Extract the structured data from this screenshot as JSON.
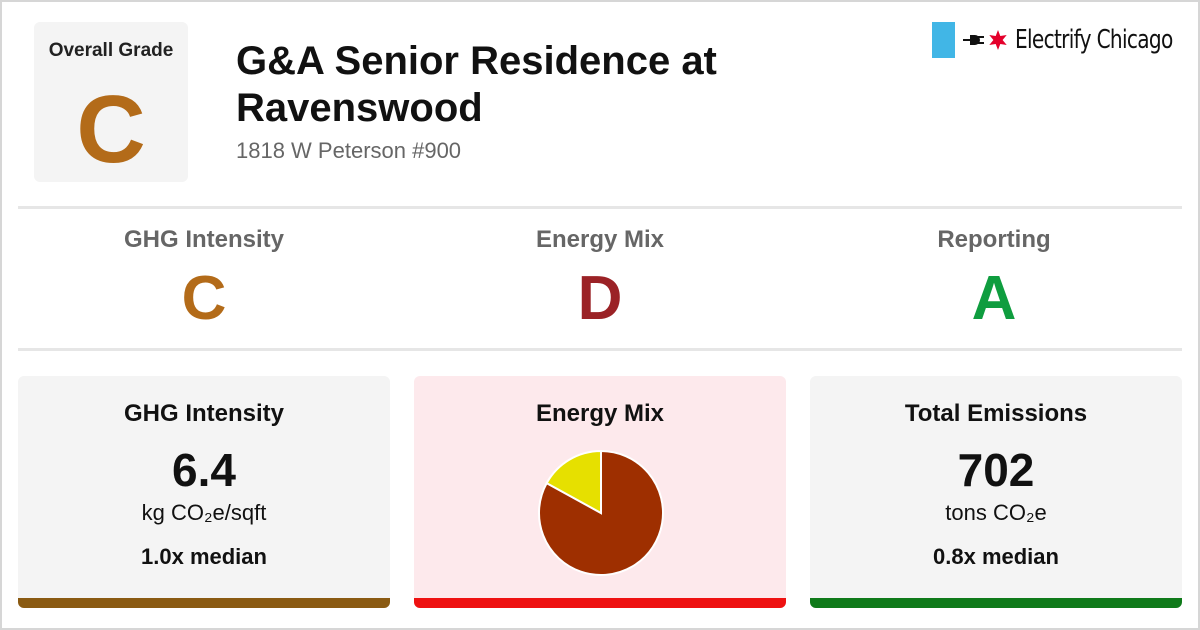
{
  "colors": {
    "grade_c": "#b36b19",
    "grade_d": "#9b2226",
    "grade_a": "#0f9d3f",
    "energy_card_bg": "#fde9ec",
    "neutral_card_bg": "#f4f4f4",
    "bar_ghg": "#8a5a12",
    "bar_energy": "#ee1111",
    "bar_emissions": "#0f7a1a",
    "flag_blue": "#41b6e6",
    "star_red": "#e4002b"
  },
  "overall": {
    "label": "Overall Grade",
    "grade": "C"
  },
  "building": {
    "name": "G&A Senior Residence at Ravenswood",
    "address": "1818 W Peterson #900"
  },
  "brand": {
    "name": "Electrify Chicago",
    "icons": [
      "chicago-flag-icon",
      "plug-icon",
      "star-icon"
    ]
  },
  "grades": [
    {
      "label": "GHG Intensity",
      "grade": "C"
    },
    {
      "label": "Energy Mix",
      "grade": "D"
    },
    {
      "label": "Reporting",
      "grade": "A"
    }
  ],
  "cards": {
    "ghg": {
      "title": "GHG Intensity",
      "value": "6.4",
      "unit": "kg CO₂e/sqft",
      "median": "1.0x median"
    },
    "energy": {
      "title": "Energy Mix"
    },
    "emissions": {
      "title": "Total Emissions",
      "value": "702",
      "unit": "tons CO₂e",
      "median": "0.8x median"
    }
  },
  "chart_data": {
    "type": "pie",
    "values": [
      0.83,
      0.17
    ],
    "colors": [
      "#9e2f00",
      "#e6e000"
    ]
  }
}
